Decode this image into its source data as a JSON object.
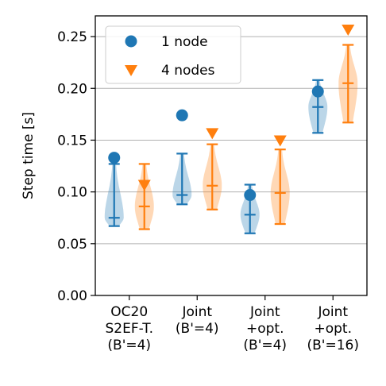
{
  "chart_data": {
    "type": "violin",
    "title": "",
    "ylabel": "Step time [s]",
    "ylim": [
      0,
      0.27
    ],
    "yticks": [
      0.0,
      0.05,
      0.1,
      0.15,
      0.2,
      0.25
    ],
    "ytick_labels": [
      "0.00",
      "0.05",
      "0.10",
      "0.15",
      "0.20",
      "0.25"
    ],
    "grid": "horizontal",
    "legend_position": "top-left",
    "categories": [
      [
        "OC20",
        "S2EF-T.",
        "(B'=4)"
      ],
      [
        "Joint",
        "(B'=4)"
      ],
      [
        "Joint",
        "+opt.",
        "(B'=4)"
      ],
      [
        "Joint",
        "+opt.",
        "(B'=16)"
      ]
    ],
    "series": [
      {
        "name": "1 node",
        "color": "#1f77b4",
        "marker": "circle",
        "first_step": [
          0.133,
          0.174,
          0.097,
          0.197
        ],
        "min": [
          0.067,
          0.088,
          0.06,
          0.157
        ],
        "median": [
          0.075,
          0.097,
          0.078,
          0.182
        ],
        "max": [
          0.127,
          0.137,
          0.107,
          0.208
        ]
      },
      {
        "name": "4 nodes",
        "color": "#ff7f0e",
        "marker": "triangle-down",
        "first_step": [
          0.107,
          0.157,
          0.15,
          0.257
        ],
        "min": [
          0.064,
          0.083,
          0.069,
          0.167
        ],
        "median": [
          0.086,
          0.106,
          0.099,
          0.205
        ],
        "max": [
          0.127,
          0.146,
          0.141,
          0.242
        ]
      }
    ]
  }
}
